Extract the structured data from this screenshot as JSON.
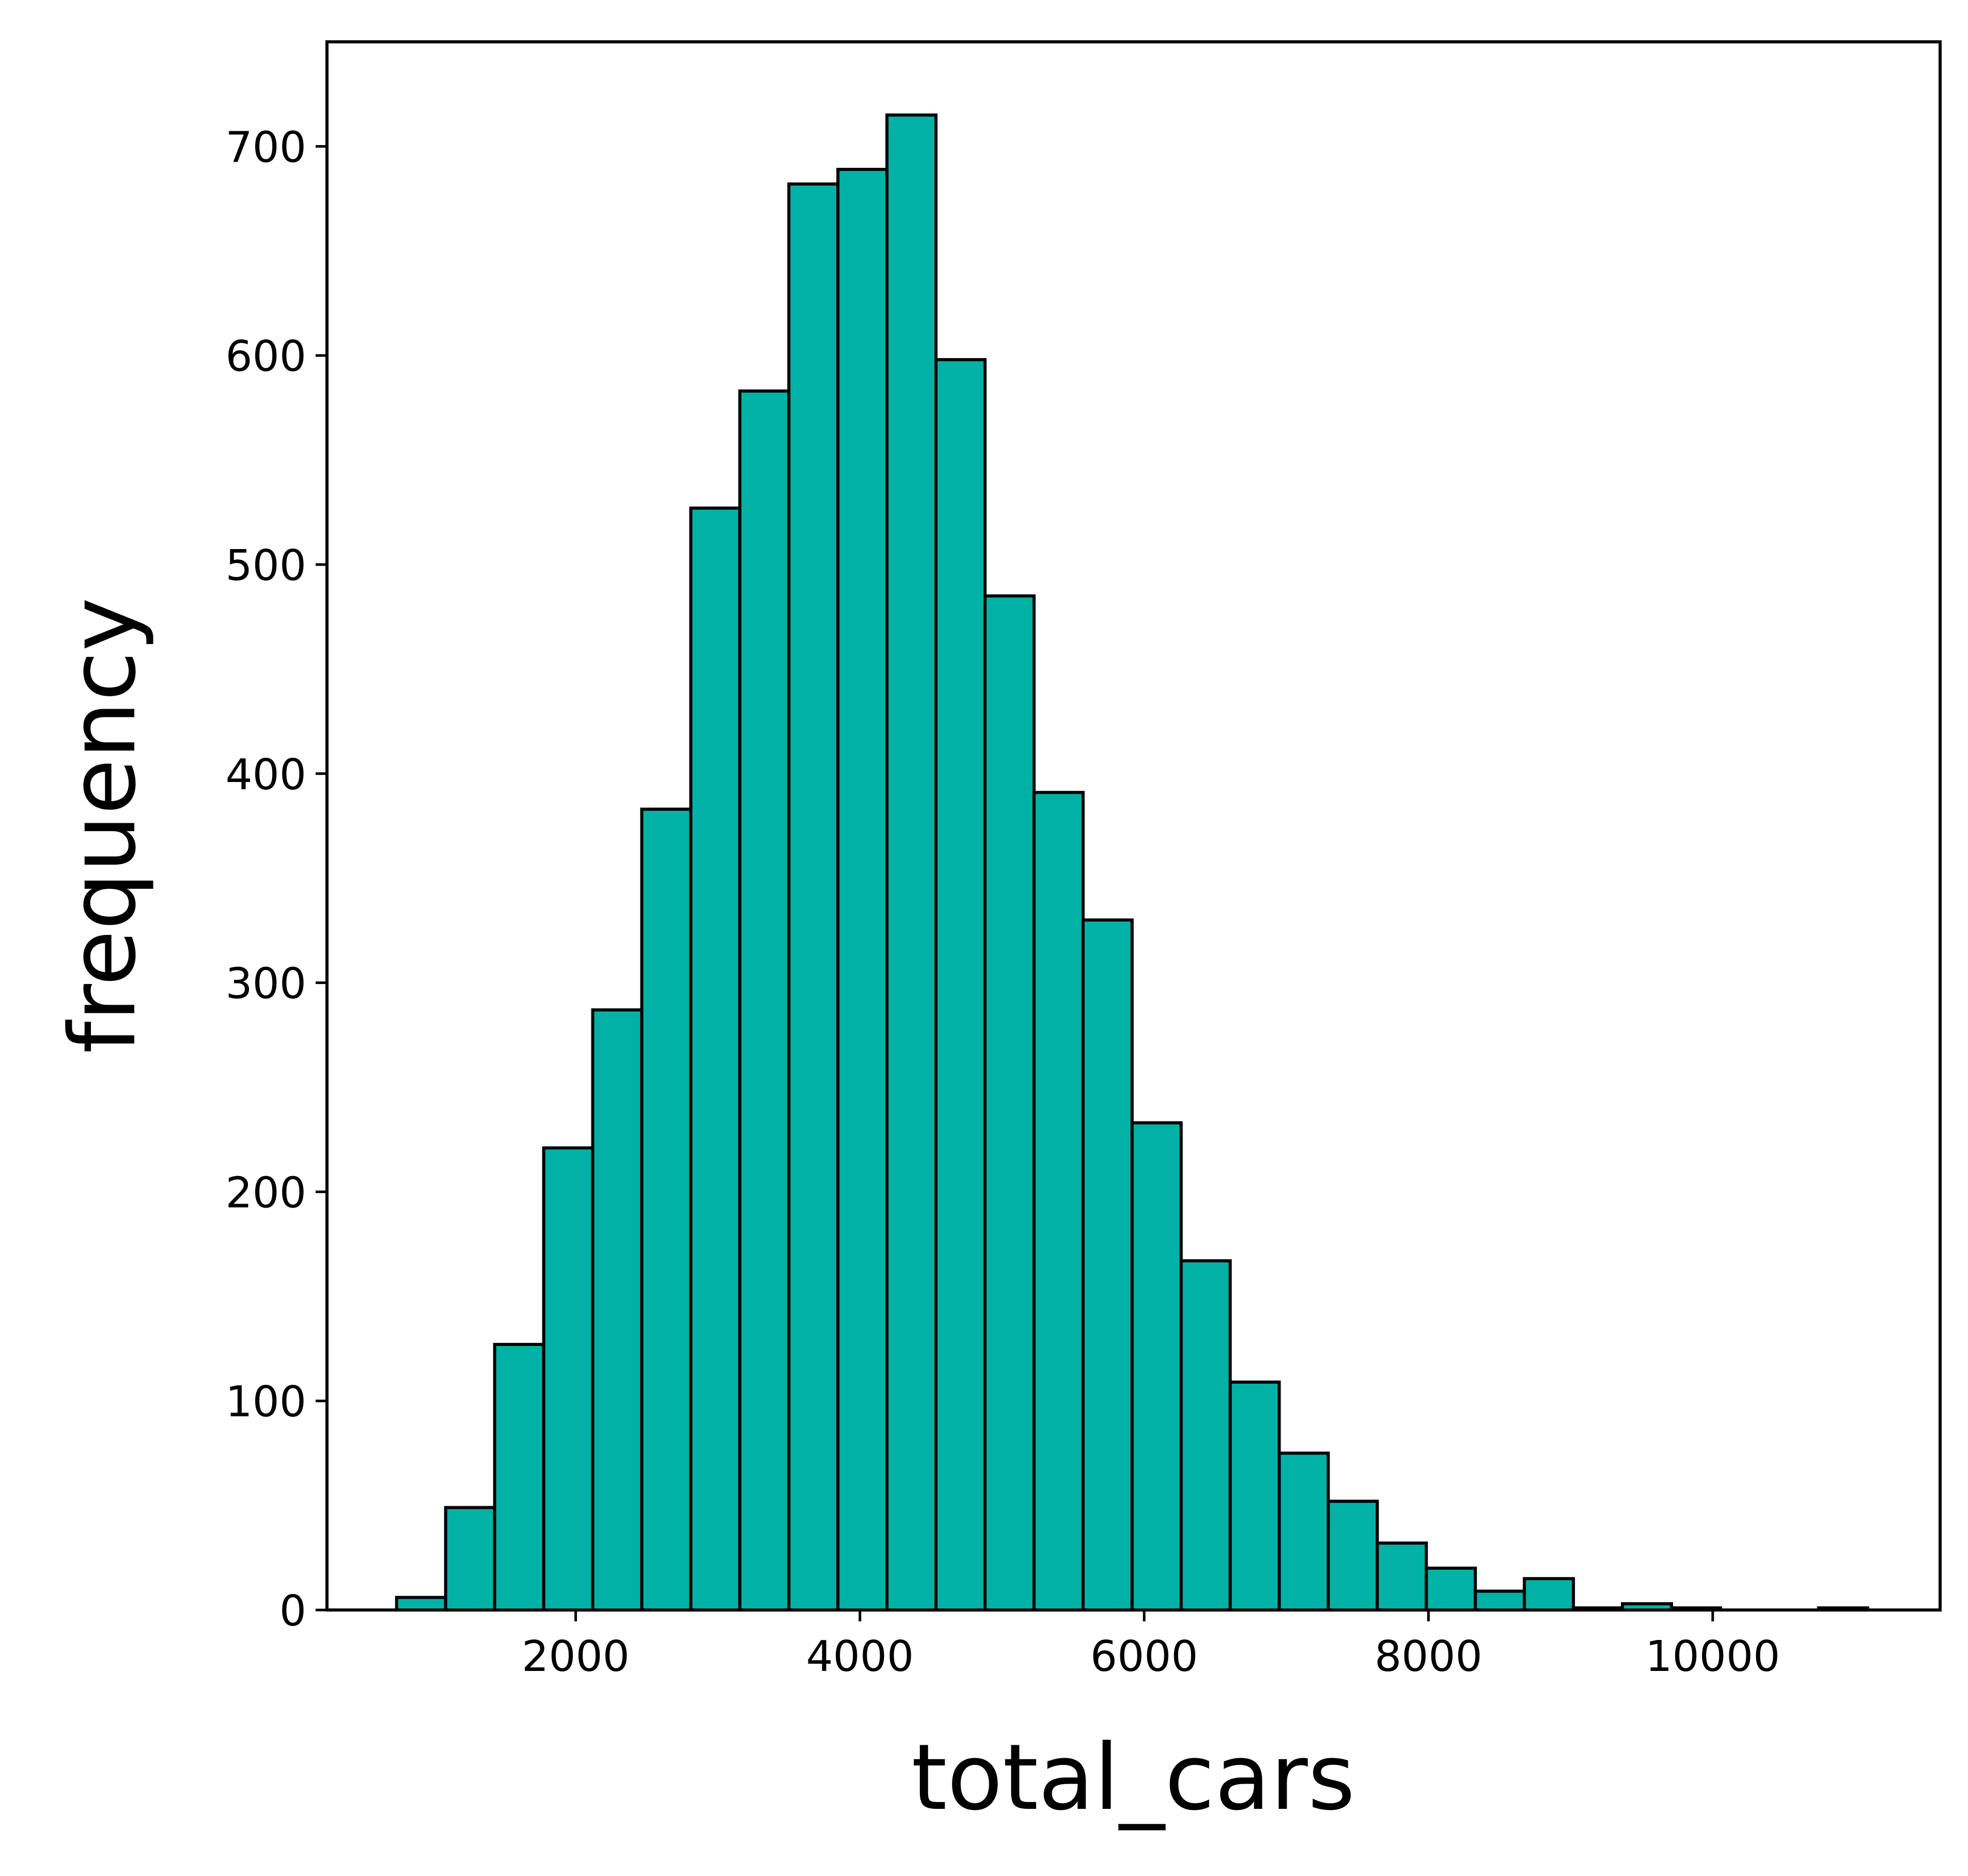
{
  "chart_data": {
    "type": "bar",
    "subtype": "histogram",
    "xlabel": "total_cars",
    "ylabel": "frequency",
    "xlim": [
      250,
      11600
    ],
    "ylim": [
      0,
      750
    ],
    "xticks": [
      2000,
      4000,
      6000,
      8000,
      10000
    ],
    "xtick_labels": [
      "2000",
      "4000",
      "6000",
      "8000",
      "10000"
    ],
    "yticks": [
      0,
      100,
      200,
      300,
      400,
      500,
      600,
      700
    ],
    "ytick_labels": [
      "0",
      "100",
      "200",
      "300",
      "400",
      "500",
      "600",
      "700"
    ],
    "bins": [
      {
        "x0": 740,
        "x1": 1085,
        "count": 6
      },
      {
        "x0": 1085,
        "x1": 1430,
        "count": 49
      },
      {
        "x0": 1430,
        "x1": 1775,
        "count": 127
      },
      {
        "x0": 1775,
        "x1": 2120,
        "count": 221
      },
      {
        "x0": 2120,
        "x1": 2465,
        "count": 287
      },
      {
        "x0": 2465,
        "x1": 2810,
        "count": 383
      },
      {
        "x0": 2810,
        "x1": 3155,
        "count": 527
      },
      {
        "x0": 3155,
        "x1": 3500,
        "count": 583
      },
      {
        "x0": 3500,
        "x1": 3845,
        "count": 682
      },
      {
        "x0": 3845,
        "x1": 4190,
        "count": 689
      },
      {
        "x0": 4190,
        "x1": 4535,
        "count": 715
      },
      {
        "x0": 4535,
        "x1": 4880,
        "count": 598
      },
      {
        "x0": 4880,
        "x1": 5225,
        "count": 485
      },
      {
        "x0": 5225,
        "x1": 5570,
        "count": 391
      },
      {
        "x0": 5570,
        "x1": 5915,
        "count": 330
      },
      {
        "x0": 5915,
        "x1": 6260,
        "count": 233
      },
      {
        "x0": 6260,
        "x1": 6605,
        "count": 167
      },
      {
        "x0": 6605,
        "x1": 6950,
        "count": 109
      },
      {
        "x0": 6950,
        "x1": 7295,
        "count": 75
      },
      {
        "x0": 7295,
        "x1": 7640,
        "count": 52
      },
      {
        "x0": 7640,
        "x1": 7985,
        "count": 32
      },
      {
        "x0": 7985,
        "x1": 8330,
        "count": 20
      },
      {
        "x0": 8330,
        "x1": 8675,
        "count": 9
      },
      {
        "x0": 8675,
        "x1": 9020,
        "count": 15
      },
      {
        "x0": 9020,
        "x1": 9365,
        "count": 1
      },
      {
        "x0": 9365,
        "x1": 9710,
        "count": 3
      },
      {
        "x0": 9710,
        "x1": 10055,
        "count": 1
      },
      {
        "x0": 10055,
        "x1": 10400,
        "count": 0
      },
      {
        "x0": 10400,
        "x1": 10745,
        "count": 0
      },
      {
        "x0": 10745,
        "x1": 11090,
        "count": 1
      }
    ],
    "bar_color": "#00b2a6",
    "edge_color": "#000000",
    "grid": false,
    "legend": "none"
  }
}
